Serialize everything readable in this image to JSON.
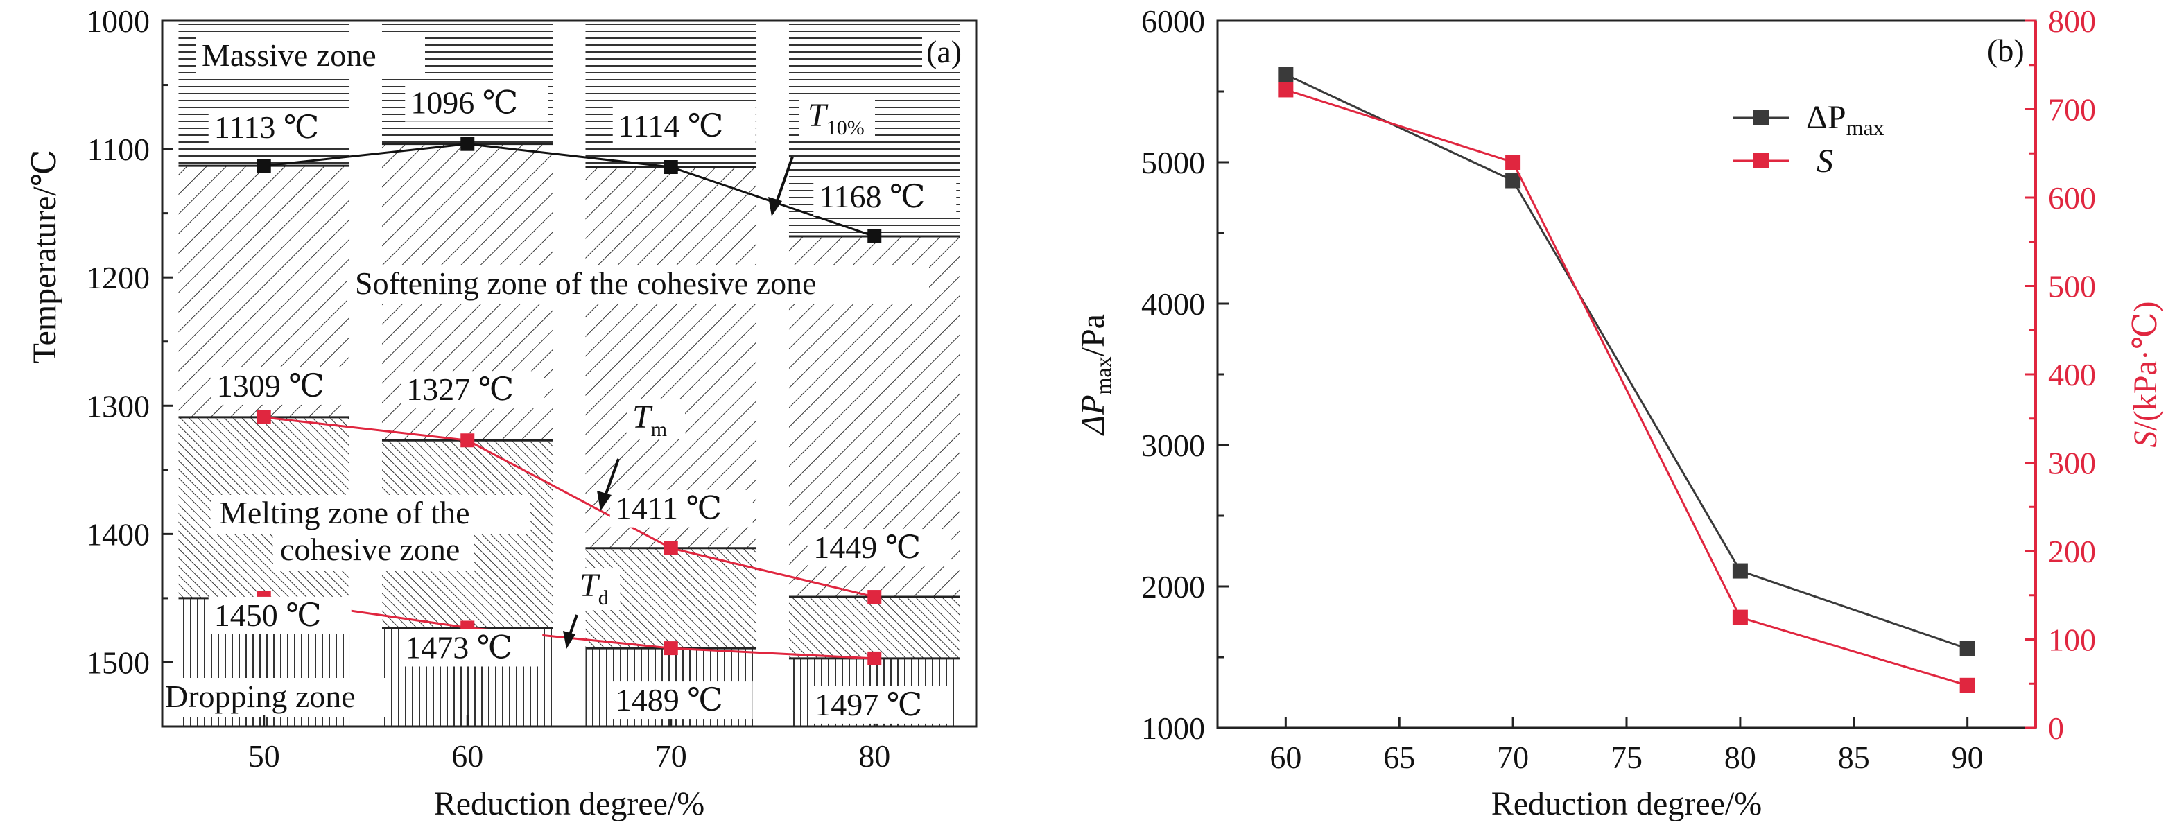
{
  "panel_a": {
    "panel_label": "(a)",
    "xlabel": "Reduction degree/%",
    "ylabel": "Temperature/℃",
    "zone_labels": {
      "massive": "Massive zone",
      "softening": "Softening zone of the cohesive zone",
      "melting_line1": "Melting zone of the",
      "melting_line2": "cohesive zone",
      "dropping": "Dropping zone"
    },
    "series_labels": {
      "t10_main": "T",
      "t10_sub": "10%",
      "tm_main": "T",
      "tm_sub": "m",
      "td_main": "T",
      "td_sub": "d"
    }
  },
  "panel_b": {
    "panel_label": "(b)",
    "xlabel": "Reduction degree/%",
    "ylabel_left_main": "ΔP",
    "ylabel_left_sub": "max",
    "ylabel_left_unit": "/Pa",
    "ylabel_right_main": "S",
    "ylabel_right_unit": "/(kPa·℃)",
    "legend": [
      {
        "main": "ΔP",
        "sub": "max",
        "color": "#3a3a3a"
      },
      {
        "main": "S",
        "sub": "",
        "color": "#e0263f"
      }
    ]
  },
  "chart_data": [
    {
      "type": "line",
      "x": [
        50,
        60,
        70,
        80
      ],
      "xlim": [
        45,
        85
      ],
      "xticks": [
        50,
        60,
        70,
        80
      ],
      "ylim": [
        1550,
        1000
      ],
      "yticks": [
        1000,
        1100,
        1200,
        1300,
        1400,
        1500
      ],
      "y_inverted": true,
      "series": [
        {
          "key": "T10",
          "values": [
            1113,
            1096,
            1114,
            1168
          ],
          "color": "#111111",
          "labels": [
            "1113 ℃",
            "1096 ℃",
            "1114 ℃",
            "1168 ℃"
          ]
        },
        {
          "key": "Tm",
          "values": [
            1309,
            1327,
            1411,
            1449
          ],
          "color": "#e0263f",
          "labels": [
            "1309 ℃",
            "1327 ℃",
            "1411 ℃",
            "1449 ℃"
          ]
        },
        {
          "key": "Td",
          "values": [
            1450,
            1473,
            1489,
            1497
          ],
          "color": "#e0263f",
          "labels": [
            "1450 ℃",
            "1473 ℃",
            "1489 ℃",
            "1497 ℃"
          ]
        }
      ],
      "grid": false
    },
    {
      "type": "line",
      "x": [
        60,
        70,
        80,
        90
      ],
      "xlim": [
        57,
        93
      ],
      "xticks": [
        60,
        65,
        70,
        75,
        80,
        85,
        90
      ],
      "ylim_left": [
        1000,
        6000
      ],
      "yticks_left": [
        1000,
        2000,
        3000,
        4000,
        5000,
        6000
      ],
      "ylim_right": [
        0,
        800
      ],
      "yticks_right": [
        0,
        100,
        200,
        300,
        400,
        500,
        600,
        700,
        800
      ],
      "series": [
        {
          "name": "ΔPmax",
          "axis": "left",
          "values": [
            5620,
            4870,
            2110,
            1560
          ],
          "color": "#3a3a3a"
        },
        {
          "name": "S",
          "axis": "right",
          "values": [
            722,
            640,
            125,
            48
          ],
          "color": "#e0263f"
        }
      ],
      "legend_position": "top-right",
      "grid": false
    }
  ]
}
